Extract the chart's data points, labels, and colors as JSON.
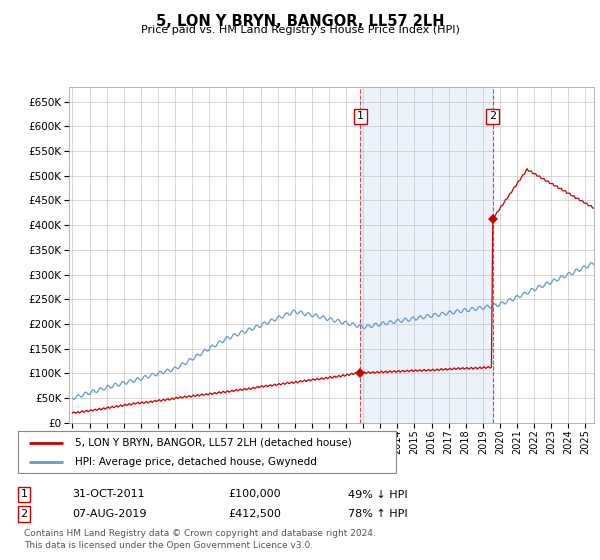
{
  "title": "5, LON Y BRYN, BANGOR, LL57 2LH",
  "subtitle": "Price paid vs. HM Land Registry's House Price Index (HPI)",
  "hpi_color": "#6699cc",
  "sale_color": "#cc0000",
  "bg_color": "#dde8f5",
  "bg_color_between": "#dde8f5",
  "grid_color": "#bbbbbb",
  "ylim": [
    0,
    680000
  ],
  "yticks": [
    0,
    50000,
    100000,
    150000,
    200000,
    250000,
    300000,
    350000,
    400000,
    450000,
    500000,
    550000,
    600000,
    650000
  ],
  "sale1": {
    "price": 100000,
    "label": "1",
    "pct": "49% ↓ HPI",
    "date_str": "31-OCT-2011",
    "t": 2011.833
  },
  "sale2": {
    "price": 412500,
    "label": "2",
    "pct": "78% ↑ HPI",
    "date_str": "07-AUG-2019",
    "t": 2019.583
  },
  "legend_entry1": "5, LON Y BRYN, BANGOR, LL57 2LH (detached house)",
  "legend_entry2": "HPI: Average price, detached house, Gwynedd",
  "footnote1": "Contains HM Land Registry data © Crown copyright and database right 2024.",
  "footnote2": "This data is licensed under the Open Government Licence v3.0.",
  "xstart": 1994.8,
  "xend": 2025.5
}
